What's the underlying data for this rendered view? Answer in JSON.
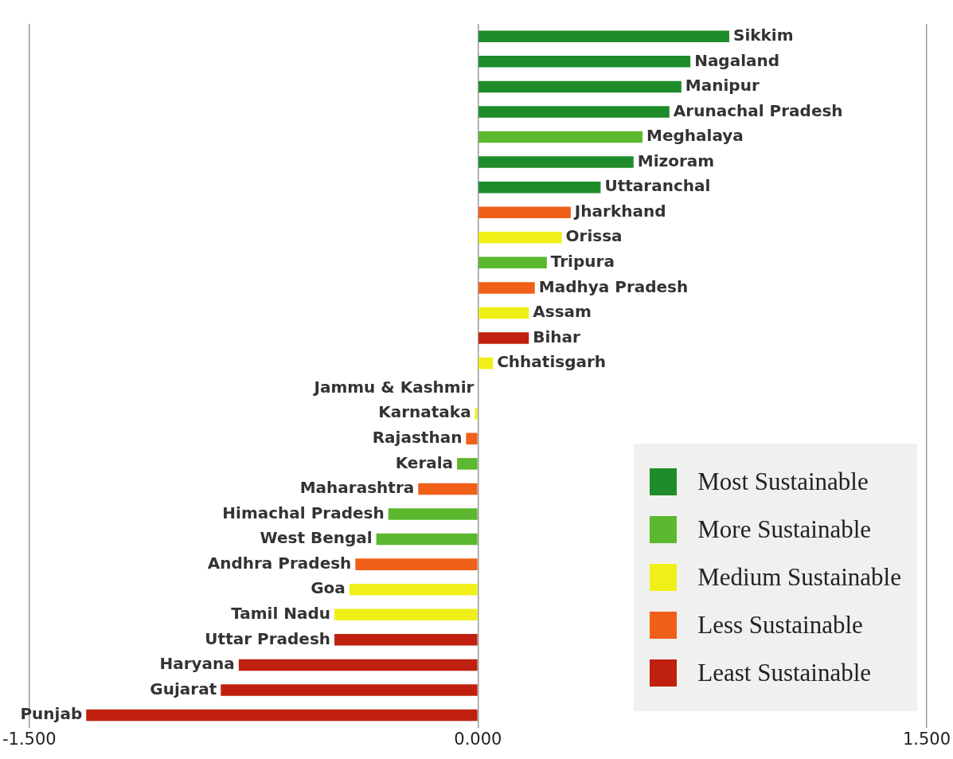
{
  "chart_data": {
    "type": "bar",
    "orientation": "horizontal",
    "stacked": true,
    "categories": [
      "Sikkim",
      "Nagaland",
      "Manipur",
      "Arunachal Pradesh",
      "Meghalaya",
      "Mizoram",
      "Uttaranchal",
      "Jharkhand",
      "Orissa",
      "Tripura",
      "Madhya Pradesh",
      "Assam",
      "Bihar",
      "Chhatisgarh",
      "Jammu & Kashmir",
      "Karnataka",
      "Rajasthan",
      "Kerala",
      "Maharashtra",
      "Himachal Pradesh",
      "West Bengal",
      "Andhra Pradesh",
      "Goa",
      "Tamil Nadu",
      "Uttar Pradesh",
      "Haryana",
      "Gujarat",
      "Punjab"
    ],
    "series": [
      {
        "name": "Most Sustainable",
        "color": "#1e8c2a",
        "values": [
          0.84,
          0.71,
          0.68,
          0.64,
          null,
          0.52,
          0.41,
          null,
          null,
          null,
          null,
          null,
          null,
          null,
          null,
          null,
          null,
          null,
          null,
          null,
          null,
          null,
          null,
          null,
          null,
          null,
          null,
          null
        ]
      },
      {
        "name": "More Sustainable",
        "color": "#5cb82e",
        "values": [
          null,
          null,
          null,
          null,
          0.55,
          null,
          null,
          null,
          null,
          0.23,
          null,
          null,
          null,
          null,
          null,
          null,
          null,
          -0.07,
          null,
          -0.3,
          -0.34,
          null,
          null,
          null,
          null,
          null,
          null,
          null
        ]
      },
      {
        "name": "Medium Sustainable",
        "color": "#f0f018",
        "values": [
          null,
          null,
          null,
          null,
          null,
          null,
          null,
          null,
          0.28,
          null,
          null,
          0.17,
          null,
          0.05,
          0,
          -0.01,
          null,
          null,
          null,
          null,
          null,
          null,
          -0.43,
          -0.48,
          null,
          null,
          null,
          null
        ]
      },
      {
        "name": "Less Sustainable",
        "color": "#f06018",
        "values": [
          null,
          null,
          null,
          null,
          null,
          null,
          null,
          0.31,
          null,
          null,
          0.19,
          null,
          null,
          null,
          null,
          null,
          -0.04,
          null,
          -0.2,
          null,
          null,
          -0.41,
          null,
          null,
          null,
          null,
          null,
          null
        ]
      },
      {
        "name": "Least Sustainable",
        "color": "#c0200f",
        "values": [
          null,
          null,
          null,
          null,
          null,
          null,
          null,
          null,
          null,
          null,
          null,
          null,
          0.17,
          null,
          null,
          null,
          null,
          null,
          null,
          null,
          null,
          null,
          null,
          null,
          -0.48,
          -0.8,
          -0.86,
          -1.31
        ]
      }
    ],
    "xlim": [
      -1.5,
      1.5
    ],
    "xticks": [
      {
        "value": -1.5,
        "label": "-1.500"
      },
      {
        "value": 0,
        "label": "0.000"
      },
      {
        "value": 1.5,
        "label": "1.500"
      }
    ],
    "grid": "x",
    "legend": "bottom right"
  }
}
